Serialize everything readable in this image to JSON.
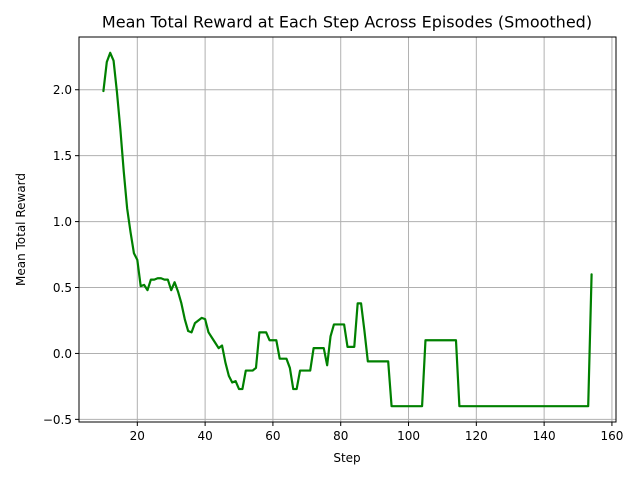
{
  "chart_data": {
    "type": "line",
    "title": "Mean Total Reward at Each Step Across Episodes (Smoothed)",
    "xlabel": "Step",
    "ylabel": "Mean Total Reward",
    "xlim": [
      2.8,
      161.2
    ],
    "ylim": [
      -0.52,
      2.4
    ],
    "xticks": [
      20,
      40,
      60,
      80,
      100,
      120,
      140,
      160
    ],
    "yticks": [
      -0.5,
      0.0,
      0.5,
      1.0,
      1.5,
      2.0
    ],
    "ytick_labels": [
      "−0.5",
      "0.0",
      "0.5",
      "1.0",
      "1.5",
      "2.0"
    ],
    "grid": true,
    "series": [
      {
        "color": "#008000",
        "x": [
          10,
          11,
          12,
          13,
          14,
          15,
          16,
          17,
          18,
          19,
          20,
          21,
          22,
          23,
          24,
          25,
          26,
          27,
          28,
          29,
          30,
          31,
          32,
          33,
          34,
          35,
          36,
          37,
          38,
          39,
          40,
          41,
          42,
          43,
          44,
          45,
          46,
          47,
          48,
          49,
          50,
          51,
          52,
          53,
          54,
          55,
          56,
          57,
          58,
          59,
          60,
          61,
          62,
          63,
          64,
          65,
          66,
          67,
          68,
          69,
          70,
          71,
          72,
          73,
          74,
          75,
          76,
          77,
          78,
          79,
          80,
          81,
          82,
          83,
          84,
          85,
          86,
          87,
          88,
          89,
          90,
          91,
          92,
          93,
          94,
          95,
          96,
          97,
          98,
          99,
          100,
          101,
          102,
          103,
          104,
          105,
          106,
          107,
          108,
          109,
          110,
          111,
          112,
          113,
          114,
          115,
          116,
          117,
          118,
          119,
          120,
          125,
          130,
          135,
          140,
          145,
          150,
          153,
          154
        ],
        "y": [
          1.99,
          2.21,
          2.28,
          2.22,
          1.98,
          1.7,
          1.38,
          1.1,
          0.92,
          0.76,
          0.71,
          0.51,
          0.52,
          0.48,
          0.56,
          0.56,
          0.57,
          0.57,
          0.56,
          0.56,
          0.48,
          0.54,
          0.47,
          0.38,
          0.26,
          0.17,
          0.16,
          0.23,
          0.25,
          0.27,
          0.26,
          0.16,
          0.12,
          0.08,
          0.04,
          0.06,
          -0.07,
          -0.17,
          -0.22,
          -0.21,
          -0.27,
          -0.27,
          -0.13,
          -0.13,
          -0.13,
          -0.11,
          0.16,
          0.16,
          0.16,
          0.1,
          0.1,
          0.1,
          -0.04,
          -0.04,
          -0.04,
          -0.11,
          -0.27,
          -0.27,
          -0.13,
          -0.13,
          -0.13,
          -0.13,
          0.04,
          0.04,
          0.04,
          0.04,
          -0.09,
          0.13,
          0.22,
          0.22,
          0.22,
          0.22,
          0.05,
          0.05,
          0.05,
          0.38,
          0.38,
          0.17,
          -0.06,
          -0.06,
          -0.06,
          -0.06,
          -0.06,
          -0.06,
          -0.06,
          -0.4,
          -0.4,
          -0.4,
          -0.4,
          -0.4,
          -0.4,
          -0.4,
          -0.4,
          -0.4,
          -0.4,
          0.1,
          0.1,
          0.1,
          0.1,
          0.1,
          0.1,
          0.1,
          0.1,
          0.1,
          0.1,
          -0.4,
          -0.4,
          -0.4,
          -0.4,
          -0.4,
          -0.4,
          -0.4,
          -0.4,
          -0.4,
          -0.4,
          -0.4,
          -0.4,
          -0.4,
          0.6
        ]
      }
    ]
  }
}
